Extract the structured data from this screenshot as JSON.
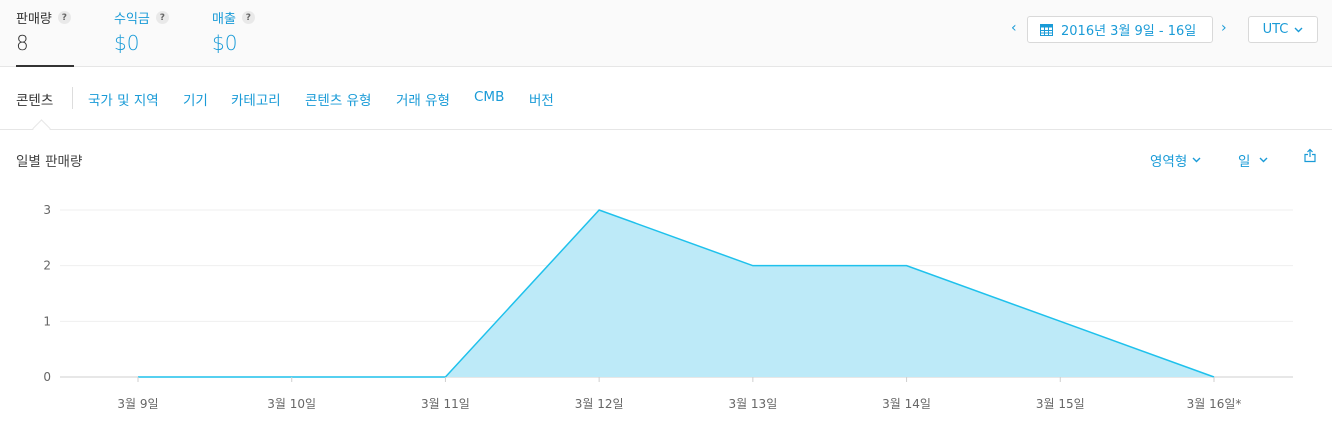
{
  "metrics": {
    "sales": {
      "label": "판매량",
      "value": "8"
    },
    "revenue": {
      "label": "수익금",
      "value": "$0"
    },
    "proceeds": {
      "label": "매출",
      "value": "$0"
    },
    "help": "?"
  },
  "date_range": "2016년 3월 9일 - 16일",
  "timezone": "UTC",
  "tabs": [
    "콘텐츠",
    "국가 및 지역",
    "기기",
    "카테고리",
    "콘텐츠 유형",
    "거래 유형",
    "CMB",
    "버전"
  ],
  "chart_header": {
    "title": "일별 판매량",
    "chart_type_label": "영역형",
    "interval_label": "일"
  },
  "colors": {
    "accent": "#1a9bd7",
    "area_fill": "#bdeaf8",
    "area_stroke": "#1fc1ec"
  },
  "chart_data": {
    "type": "area",
    "categories": [
      "3월 9일",
      "3월 10일",
      "3월 11일",
      "3월 12일",
      "3월 13일",
      "3월 14일",
      "3월 15일",
      "3월 16일*"
    ],
    "series": [
      {
        "values": [
          0,
          0,
          0,
          3,
          2,
          2,
          1,
          0
        ]
      }
    ],
    "ylim": [
      0,
      3
    ],
    "yticks": [
      0,
      1,
      2,
      3
    ],
    "grid": true,
    "xlabel": "",
    "ylabel": ""
  }
}
